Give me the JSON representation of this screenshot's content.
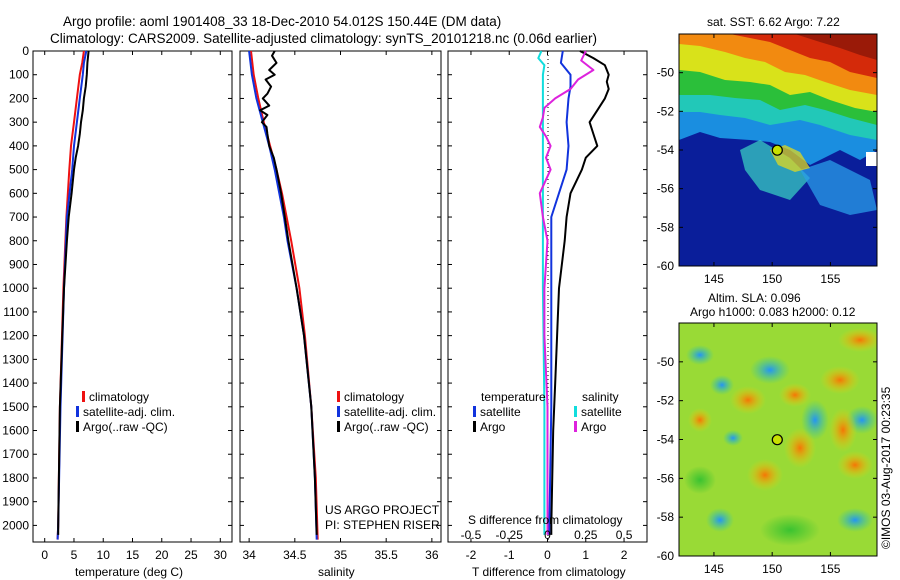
{
  "header": {
    "line1": "Argo profile: aoml 1901408_33 18-Dec-2010 54.012S 150.44E (DM data)",
    "line2": "Climatology: CARS2009. Satellite-adjusted climatology: synTS_20101218.nc (0.06d earlier)"
  },
  "colors": {
    "climatology": "#ee1111",
    "satellite": "#1133dd",
    "argo": "#000000",
    "argo_salinity": "#dd22dd",
    "satellite_salinity": "#11dddd"
  },
  "chart_data": [
    {
      "type": "line",
      "name": "temperature-panel",
      "xlabel": "temperature (deg C)",
      "xlim": [
        -2,
        32
      ],
      "xticks": [
        0,
        5,
        10,
        15,
        20,
        25,
        30
      ],
      "xticklabels": [
        "0",
        "5",
        "10",
        "15",
        "20",
        "25",
        "30"
      ],
      "ylim": [
        0,
        2070
      ],
      "yticks": [
        0,
        100,
        200,
        300,
        400,
        500,
        600,
        700,
        800,
        900,
        1000,
        1100,
        1200,
        1300,
        1400,
        1500,
        1600,
        1700,
        1800,
        1900,
        2000
      ],
      "yticklabels": [
        "0",
        "100",
        "200",
        "300",
        "400",
        "500",
        "600",
        "700",
        "800",
        "900",
        "1000",
        "1100",
        "1200",
        "1300",
        "1400",
        "1500",
        "1600",
        "1700",
        "1800",
        "1900",
        "2000"
      ],
      "legend": [
        "climatology",
        "satellite-adj. clim.",
        "Argo(..raw -QC)"
      ],
      "legend_position": "lower-center",
      "series": [
        {
          "name": "climatology",
          "depth": [
            0,
            50,
            100,
            200,
            300,
            400,
            500,
            700,
            1000,
            1500,
            2000,
            2060
          ],
          "values": [
            6.7,
            6.4,
            6.0,
            5.5,
            5.0,
            4.5,
            4.2,
            3.7,
            3.2,
            2.6,
            2.3,
            2.2
          ]
        },
        {
          "name": "satellite",
          "depth": [
            0,
            50,
            100,
            200,
            300,
            400,
            500,
            700,
            1000,
            1500,
            2000,
            2060
          ],
          "values": [
            7.1,
            6.7,
            6.5,
            6.0,
            5.5,
            5.0,
            4.7,
            3.8,
            3.3,
            2.7,
            2.3,
            2.2
          ]
        },
        {
          "name": "argo",
          "depth": [
            0,
            50,
            100,
            150,
            200,
            250,
            300,
            350,
            400,
            450,
            500,
            600,
            700,
            800,
            1000,
            1200,
            1500,
            2000,
            2040
          ],
          "values": [
            7.5,
            7.3,
            7.2,
            7.0,
            6.7,
            6.5,
            6.2,
            6.0,
            5.7,
            5.3,
            5.0,
            4.6,
            4.1,
            3.8,
            3.3,
            3.0,
            2.6,
            2.3,
            2.3
          ]
        }
      ]
    },
    {
      "type": "line",
      "name": "salinity-panel",
      "xlabel": "salinity",
      "xlim": [
        33.9,
        36.1
      ],
      "xticks": [
        34,
        34.5,
        35,
        35.5,
        36
      ],
      "xticklabels": [
        "34",
        "34.5",
        "35",
        "35.5",
        "36"
      ],
      "ylim": [
        0,
        2070
      ],
      "legend": [
        "climatology",
        "satellite-adj. clim.",
        "Argo(..raw -QC)"
      ],
      "legend_position": "lower-right",
      "annotation": [
        "US ARGO PROJECT",
        "PI: STEPHEN RISER"
      ],
      "series": [
        {
          "name": "climatology",
          "depth": [
            0,
            100,
            200,
            300,
            400,
            500,
            600,
            700,
            800,
            1000,
            1200,
            1500,
            1800,
            2060
          ],
          "values": [
            34.02,
            34.05,
            34.1,
            34.16,
            34.23,
            34.3,
            34.36,
            34.41,
            34.46,
            34.55,
            34.61,
            34.68,
            34.73,
            34.75
          ]
        },
        {
          "name": "satellite",
          "depth": [
            0,
            100,
            200,
            300,
            400,
            500,
            600,
            700,
            800,
            1000,
            1200,
            1500,
            1800,
            2060
          ],
          "values": [
            34.0,
            34.03,
            34.08,
            34.15,
            34.22,
            34.28,
            34.33,
            34.38,
            34.42,
            34.52,
            34.6,
            34.68,
            34.72,
            34.74
          ]
        },
        {
          "name": "argo",
          "depth": [
            0,
            20,
            50,
            80,
            100,
            120,
            150,
            180,
            200,
            230,
            250,
            270,
            300,
            320,
            350,
            400,
            450,
            500,
            600,
            700,
            800,
            1000,
            1200,
            1500,
            1800,
            2040
          ],
          "values": [
            34.28,
            34.25,
            34.3,
            34.22,
            34.28,
            34.18,
            34.24,
            34.2,
            34.15,
            34.22,
            34.12,
            34.2,
            34.14,
            34.19,
            34.2,
            34.22,
            34.27,
            34.3,
            34.35,
            34.39,
            34.43,
            34.52,
            34.6,
            34.68,
            34.72,
            34.74
          ]
        }
      ]
    },
    {
      "type": "line",
      "name": "difference-panel",
      "xlabel": "T difference from climatology",
      "xlabel_top": "S difference from climatology",
      "xlim": [
        -2.6,
        2.6
      ],
      "xticks": [
        -2,
        -1,
        0,
        1,
        2
      ],
      "xticklabels": [
        "-2",
        "-1",
        "0",
        "1",
        "2"
      ],
      "sticks": [
        -0.5,
        -0.25,
        0,
        0.25,
        0.5
      ],
      "sticklabels": [
        "-0.5",
        "-0.25",
        "0",
        "0.25",
        "0.5"
      ],
      "ylim": [
        0,
        2070
      ],
      "legend_titles": [
        "temperature",
        "salinity"
      ],
      "legend": [
        "satellite",
        "Argo",
        "satellite",
        "Argo"
      ],
      "series": [
        {
          "name": "T satellite",
          "depth": [
            0,
            50,
            100,
            150,
            200,
            300,
            400,
            500,
            700,
            1000,
            1500,
            2000,
            2040
          ],
          "values": [
            0.4,
            0.35,
            0.6,
            0.6,
            0.55,
            0.5,
            0.55,
            0.5,
            0.1,
            0.1,
            0.1,
            0.05,
            0.05
          ]
        },
        {
          "name": "T argo",
          "depth": [
            0,
            30,
            60,
            100,
            130,
            160,
            200,
            250,
            300,
            350,
            400,
            450,
            500,
            600,
            700,
            800,
            1000,
            1200,
            1400,
            1600,
            2000,
            2040
          ],
          "values": [
            0.85,
            1.2,
            1.5,
            1.6,
            1.55,
            1.6,
            1.5,
            1.3,
            1.1,
            1.2,
            1.3,
            1.0,
            0.9,
            0.6,
            0.5,
            0.45,
            0.3,
            0.25,
            0.2,
            0.15,
            0.1,
            0.1
          ]
        },
        {
          "name": "S satellite",
          "depth": [
            0,
            30,
            60,
            100,
            200,
            300,
            400,
            500,
            600,
            700,
            1000,
            1500,
            2000,
            2040
          ],
          "values": [
            -0.04,
            -0.06,
            -0.02,
            -0.03,
            -0.03,
            -0.03,
            -0.03,
            -0.03,
            -0.03,
            -0.03,
            -0.03,
            -0.02,
            -0.02,
            -0.02
          ]
        },
        {
          "name": "S argo",
          "depth": [
            0,
            40,
            80,
            120,
            160,
            200,
            240,
            280,
            320,
            360,
            400,
            450,
            500,
            600,
            700,
            800,
            1000,
            1200,
            1500,
            2000,
            2040
          ],
          "values": [
            0.25,
            0.22,
            0.3,
            0.2,
            0.15,
            0.05,
            -0.02,
            -0.03,
            -0.05,
            -0.01,
            0.02,
            -0.01,
            0.02,
            -0.05,
            -0.03,
            0.0,
            -0.02,
            -0.02,
            0.0,
            0.0,
            0.0
          ]
        }
      ]
    },
    {
      "type": "heatmap",
      "name": "sst-map",
      "title": "sat. SST: 6.62 Argo: 7.22",
      "xlim": [
        142,
        159
      ],
      "ylim": [
        -60,
        -48
      ],
      "xticks": [
        145,
        150,
        155
      ],
      "xticklabels": [
        "145",
        "150",
        "155"
      ],
      "yticks": [
        -50,
        -52,
        -54,
        -56,
        -58,
        -60
      ],
      "yticklabels": [
        "-50",
        "-52",
        "-54",
        "-56",
        "-58",
        "-60"
      ],
      "marker": {
        "lon": 150.44,
        "lat": -54.012
      }
    },
    {
      "type": "heatmap",
      "name": "sla-map",
      "title": "Altim. SLA: 0.096",
      "subtitle": "Argo h1000: 0.083 h2000: 0.12",
      "xlim": [
        142,
        159
      ],
      "ylim": [
        -60,
        -48
      ],
      "xticks": [
        145,
        150,
        155
      ],
      "xticklabels": [
        "145",
        "150",
        "155"
      ],
      "yticks": [
        -50,
        -52,
        -54,
        -56,
        -58,
        -60
      ],
      "yticklabels": [
        "-50",
        "-52",
        "-54",
        "-56",
        "-58",
        "-60"
      ],
      "marker": {
        "lon": 150.44,
        "lat": -54.012
      }
    }
  ],
  "credit": "©IMOS 03-Aug-2017 00:23:35"
}
